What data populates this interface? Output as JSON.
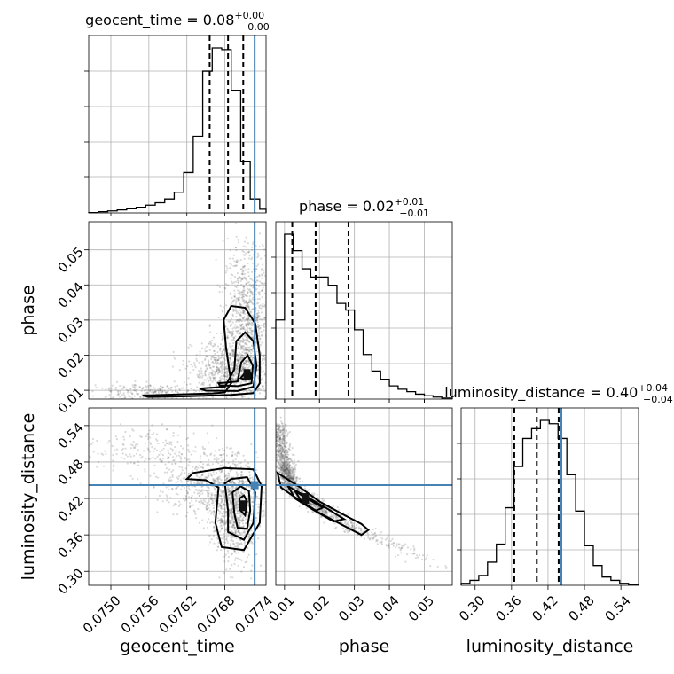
{
  "colors": {
    "truth": "#4682b4",
    "points": "#555555",
    "density_levels": [
      "#ececec",
      "#b9b9b9",
      "#7f7f7f",
      "#3c3c3c"
    ]
  },
  "chart_data": {
    "type": "corner",
    "parameters": [
      {
        "name": "geocent_time",
        "axis_label": "geocent_time",
        "range": [
          0.07465,
          0.07745
        ],
        "ticks": [
          0.075,
          0.0756,
          0.0762,
          0.0768,
          0.0774
        ],
        "tick_labels": [
          "0.0750",
          "0.0756",
          "0.0762",
          "0.0768",
          "0.0774"
        ],
        "truth": 0.07727,
        "quantiles": [
          0.07656,
          0.07685,
          0.07709
        ],
        "title": {
          "prefix": "geocent_time = ",
          "median": "0.08",
          "plus": "+0.00",
          "minus": "−0.00"
        },
        "hist_edges": [
          0.07465,
          0.0748,
          0.07495,
          0.0751,
          0.07525,
          0.0754,
          0.07555,
          0.0757,
          0.07585,
          0.076,
          0.07615,
          0.0763,
          0.07645,
          0.0766,
          0.07675,
          0.0769,
          0.07705,
          0.0772,
          0.07735,
          0.07745
        ],
        "hist_values": [
          0.002,
          0.007,
          0.012,
          0.018,
          0.025,
          0.034,
          0.047,
          0.062,
          0.085,
          0.125,
          0.245,
          0.465,
          0.86,
          1.0,
          0.99,
          0.74,
          0.31,
          0.085,
          0.022
        ]
      },
      {
        "name": "phase",
        "axis_label": "phase",
        "range": [
          0.0075,
          0.058
        ],
        "ticks": [
          0.01,
          0.02,
          0.03,
          0.04,
          0.05
        ],
        "tick_labels": [
          "0.01",
          "0.02",
          "0.03",
          "0.04",
          "0.05"
        ],
        "truth": null,
        "quantiles": [
          0.0122,
          0.0189,
          0.0283
        ],
        "title": {
          "prefix": "phase = ",
          "median": "0.02",
          "plus": "+0.01",
          "minus": "−0.01"
        },
        "hist_edges": [
          0.0075,
          0.01,
          0.0125,
          0.015,
          0.0175,
          0.02,
          0.0225,
          0.025,
          0.0275,
          0.03,
          0.0325,
          0.035,
          0.0375,
          0.04,
          0.0425,
          0.045,
          0.0475,
          0.05,
          0.0525,
          0.055,
          0.058
        ],
        "hist_values": [
          0.48,
          1.0,
          0.9,
          0.79,
          0.74,
          0.74,
          0.69,
          0.58,
          0.54,
          0.42,
          0.27,
          0.17,
          0.12,
          0.08,
          0.06,
          0.045,
          0.03,
          0.02,
          0.012,
          0.006
        ]
      },
      {
        "name": "luminosity_distance",
        "axis_label": "luminosity_distance",
        "range": [
          0.277,
          0.569
        ],
        "ticks": [
          0.3,
          0.36,
          0.42,
          0.48,
          0.54
        ],
        "tick_labels": [
          "0.30",
          "0.36",
          "0.42",
          "0.48",
          "0.54"
        ],
        "truth": 0.442,
        "quantiles": [
          0.3645,
          0.4015,
          0.4375
        ],
        "title": {
          "prefix": "luminosity_distance = ",
          "median": "0.40",
          "plus": "+0.04",
          "minus": "−0.04"
        },
        "hist_edges": [
          0.277,
          0.2915,
          0.306,
          0.3205,
          0.335,
          0.3495,
          0.364,
          0.3785,
          0.393,
          0.4075,
          0.422,
          0.4365,
          0.451,
          0.4655,
          0.48,
          0.4945,
          0.509,
          0.5235,
          0.538,
          0.5525,
          0.569
        ],
        "hist_values": [
          0.012,
          0.03,
          0.06,
          0.14,
          0.25,
          0.47,
          0.72,
          0.89,
          0.95,
          1.0,
          0.98,
          0.89,
          0.67,
          0.45,
          0.24,
          0.12,
          0.05,
          0.03,
          0.012,
          0.004
        ]
      }
    ],
    "pairs": [
      {
        "x": "geocent_time",
        "y": "phase",
        "truth_x": 0.07727,
        "truth_y": null,
        "scatter_lobes": [
          {
            "cx": 0.07715,
            "cy": 0.03,
            "sx": 0.00018,
            "sy": 0.0105,
            "n": 900
          },
          {
            "cx": 0.0769,
            "cy": 0.0155,
            "sx": 0.0003,
            "sy": 0.0045,
            "n": 800
          },
          {
            "cx": 0.0756,
            "cy": 0.0095,
            "sx": 0.00045,
            "sy": 0.0012,
            "n": 240
          }
        ],
        "contours": [
          [
            [
              0.0755,
              0.0085
            ],
            [
              0.0762,
              0.0089
            ],
            [
              0.0766,
              0.0091
            ],
            [
              0.0768,
              0.0094
            ],
            [
              0.0769,
              0.012
            ],
            [
              0.07682,
              0.022
            ],
            [
              0.07678,
              0.03
            ],
            [
              0.0769,
              0.034
            ],
            [
              0.07712,
              0.0335
            ],
            [
              0.07728,
              0.029
            ],
            [
              0.07735,
              0.02
            ],
            [
              0.07735,
              0.012
            ],
            [
              0.07725,
              0.0092
            ],
            [
              0.0769,
              0.0087
            ],
            [
              0.0762,
              0.0083
            ],
            [
              0.0756,
              0.0081
            ]
          ],
          [
            [
              0.0764,
              0.0105
            ],
            [
              0.0768,
              0.011
            ],
            [
              0.07695,
              0.016
            ],
            [
              0.07698,
              0.024
            ],
            [
              0.07712,
              0.0265
            ],
            [
              0.07725,
              0.024
            ],
            [
              0.0773,
              0.017
            ],
            [
              0.07725,
              0.011
            ],
            [
              0.077,
              0.0098
            ],
            [
              0.0765,
              0.0099
            ]
          ],
          [
            [
              0.0767,
              0.012
            ],
            [
              0.077,
              0.0125
            ],
            [
              0.07706,
              0.018
            ],
            [
              0.07716,
              0.02
            ],
            [
              0.07724,
              0.017
            ],
            [
              0.07722,
              0.012
            ],
            [
              0.077,
              0.0112
            ],
            [
              0.07672,
              0.0114
            ]
          ],
          [
            [
              0.07705,
              0.0135
            ],
            [
              0.07712,
              0.015
            ],
            [
              0.0772,
              0.015
            ],
            [
              0.07722,
              0.0135
            ],
            [
              0.07712,
              0.013
            ]
          ]
        ],
        "density_peak": [
          0.07715,
          0.0145
        ]
      },
      {
        "x": "geocent_time",
        "y": "luminosity_distance",
        "truth_x": 0.07727,
        "truth_y": 0.442,
        "scatter_lobes": [
          {
            "cx": 0.07695,
            "cy": 0.4,
            "sx": 0.00018,
            "sy": 0.04,
            "n": 900
          },
          {
            "cx": 0.0765,
            "cy": 0.44,
            "sx": 0.00035,
            "sy": 0.025,
            "n": 450
          },
          {
            "cx": 0.0756,
            "cy": 0.5,
            "sx": 0.0005,
            "sy": 0.02,
            "n": 200
          }
        ],
        "contours": [
          [
            [
              0.0762,
              0.452
            ],
            [
              0.0765,
              0.45
            ],
            [
              0.0767,
              0.438
            ],
            [
              0.07665,
              0.38
            ],
            [
              0.07675,
              0.34
            ],
            [
              0.0771,
              0.335
            ],
            [
              0.07735,
              0.38
            ],
            [
              0.07738,
              0.44
            ],
            [
              0.07725,
              0.468
            ],
            [
              0.0768,
              0.47
            ],
            [
              0.0763,
              0.462
            ]
          ],
          [
            [
              0.0768,
              0.445
            ],
            [
              0.07685,
              0.4
            ],
            [
              0.07685,
              0.365
            ],
            [
              0.0771,
              0.352
            ],
            [
              0.07725,
              0.38
            ],
            [
              0.07728,
              0.43
            ],
            [
              0.07715,
              0.455
            ],
            [
              0.0769,
              0.452
            ]
          ],
          [
            [
              0.07692,
              0.43
            ],
            [
              0.07695,
              0.395
            ],
            [
              0.077,
              0.372
            ],
            [
              0.07715,
              0.37
            ],
            [
              0.0772,
              0.4
            ],
            [
              0.07718,
              0.432
            ],
            [
              0.07705,
              0.44
            ]
          ],
          [
            [
              0.07703,
              0.42
            ],
            [
              0.07705,
              0.4
            ],
            [
              0.07712,
              0.392
            ],
            [
              0.07715,
              0.415
            ],
            [
              0.0771,
              0.425
            ]
          ]
        ],
        "density_peak": [
          0.07708,
          0.408
        ]
      },
      {
        "x": "phase",
        "y": "luminosity_distance",
        "truth_x": null,
        "truth_y": 0.442,
        "scatter_band": {
          "points": [
            [
              0.008,
              0.54
            ],
            [
              0.01,
              0.47
            ],
            [
              0.012,
              0.44
            ],
            [
              0.02,
              0.405
            ],
            [
              0.03,
              0.37
            ],
            [
              0.04,
              0.345
            ],
            [
              0.05,
              0.32
            ],
            [
              0.056,
              0.305
            ]
          ],
          "width": 0.012,
          "n": 1400
        },
        "contours": [
          [
            [
              0.008,
              0.462
            ],
            [
              0.014,
              0.44
            ],
            [
              0.02,
              0.415
            ],
            [
              0.026,
              0.396
            ],
            [
              0.032,
              0.378
            ],
            [
              0.034,
              0.368
            ],
            [
              0.032,
              0.36
            ],
            [
              0.026,
              0.378
            ],
            [
              0.02,
              0.396
            ],
            [
              0.014,
              0.418
            ],
            [
              0.009,
              0.438
            ]
          ],
          [
            [
              0.011,
              0.44
            ],
            [
              0.016,
              0.424
            ],
            [
              0.022,
              0.404
            ],
            [
              0.027,
              0.386
            ],
            [
              0.024,
              0.382
            ],
            [
              0.018,
              0.402
            ],
            [
              0.013,
              0.42
            ]
          ],
          [
            [
              0.013,
              0.432
            ],
            [
              0.017,
              0.418
            ],
            [
              0.021,
              0.405
            ],
            [
              0.019,
              0.4
            ],
            [
              0.015,
              0.414
            ]
          ]
        ],
        "density_peak": [
          0.016,
          0.42
        ]
      }
    ]
  }
}
